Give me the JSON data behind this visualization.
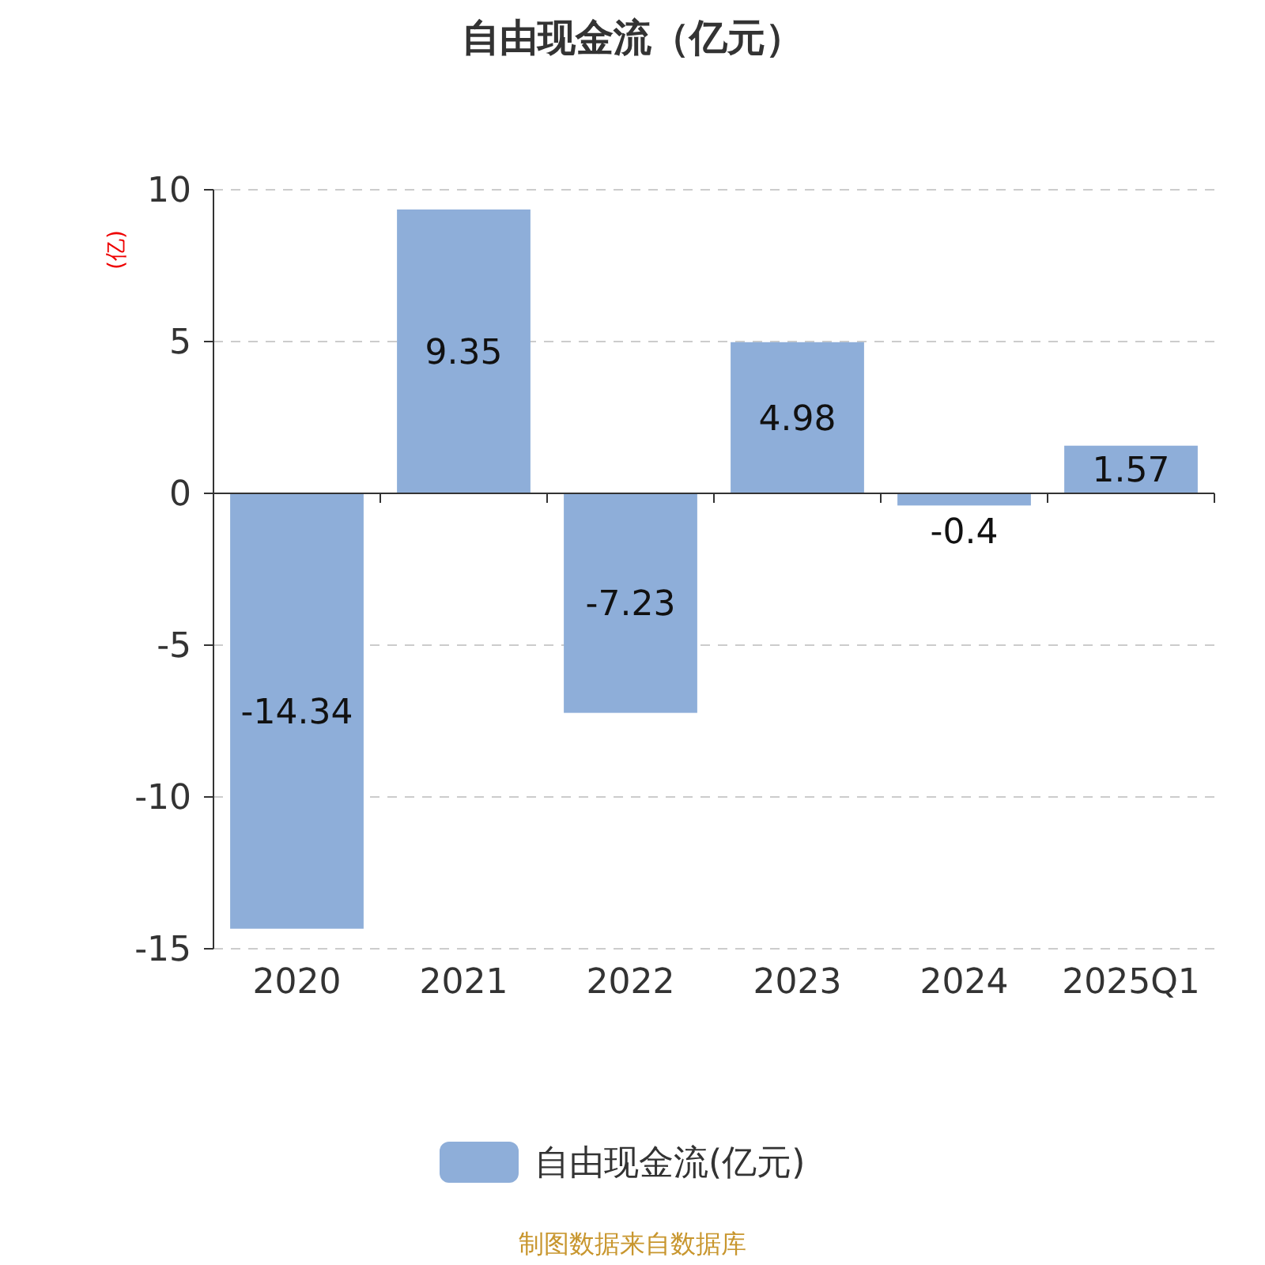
{
  "chart_data": {
    "type": "bar",
    "title": "自由现金流（亿元）",
    "ylabel": "(亿)",
    "categories": [
      "2020",
      "2021",
      "2022",
      "2023",
      "2024",
      "2025Q1"
    ],
    "series": [
      {
        "name": "自由现金流(亿元)",
        "color": "#8eaed9",
        "values": [
          -14.34,
          9.35,
          -7.23,
          4.98,
          -0.4,
          1.57
        ]
      }
    ],
    "ylim": [
      -15,
      10
    ],
    "yticks": [
      -15,
      -10,
      -5,
      0,
      5,
      10
    ],
    "grid": "y",
    "legend": "bottom",
    "data_labels": true,
    "annotations": [
      "制图数据来自数据库"
    ]
  }
}
